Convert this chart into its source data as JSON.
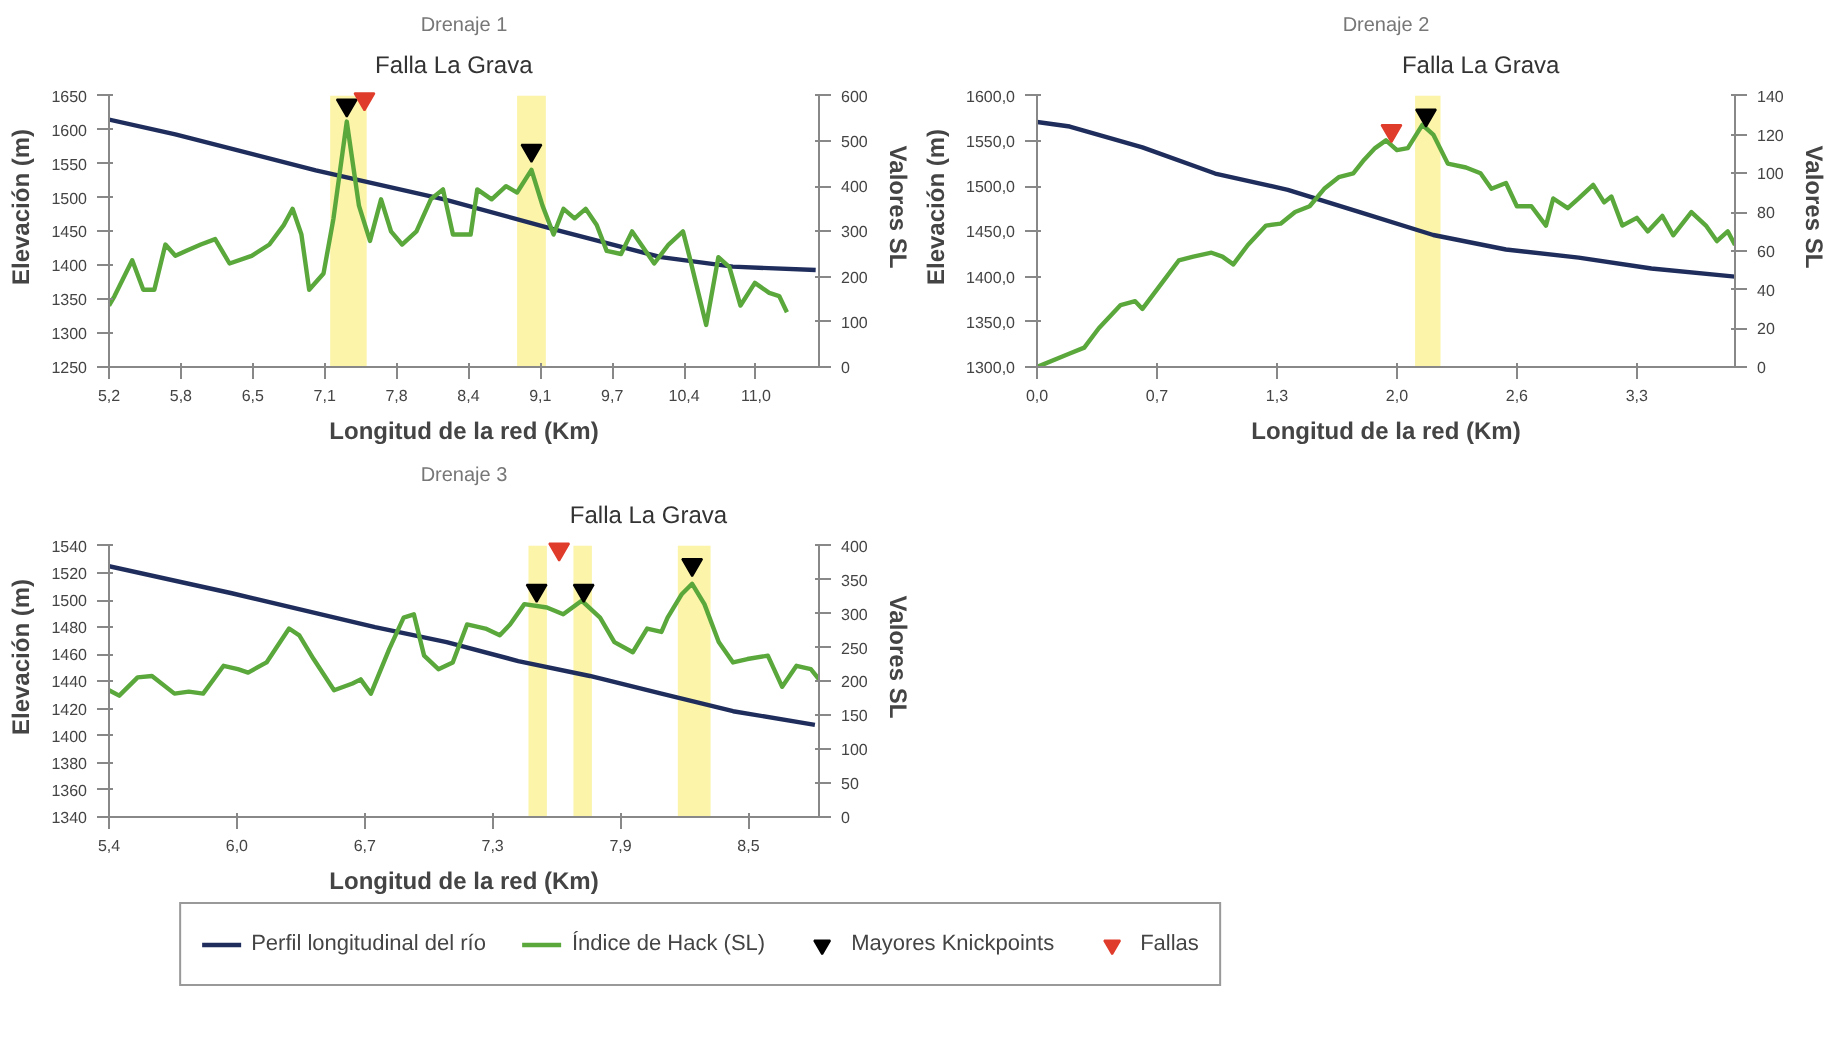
{
  "chart_data": [
    {
      "type": "line",
      "title": "Drenaje 1",
      "xlabel": "Longitud de la red (Km)",
      "ylabel": "Elevación (m)",
      "y2label": "Valores SL",
      "xlim": [
        5.2,
        11.62
      ],
      "xticks": [
        {
          "value": 5.2,
          "label": "5,2"
        },
        {
          "value": 5.85,
          "label": "5,8"
        },
        {
          "value": 6.5,
          "label": "6,5"
        },
        {
          "value": 7.15,
          "label": "7,1"
        },
        {
          "value": 7.8,
          "label": "7,8"
        },
        {
          "value": 8.45,
          "label": "8,4"
        },
        {
          "value": 9.1,
          "label": "9,1"
        },
        {
          "value": 9.75,
          "label": "9,7"
        },
        {
          "value": 10.4,
          "label": "10,4"
        },
        {
          "value": 11.05,
          "label": "11,0"
        }
      ],
      "ylim": [
        1250,
        1650
      ],
      "yticks": [
        1250,
        1300,
        1350,
        1400,
        1450,
        1500,
        1550,
        1600,
        1650
      ],
      "y2lim": [
        0,
        600
      ],
      "y2ticks": [
        0,
        100,
        200,
        300,
        400,
        500,
        600
      ],
      "grid": false,
      "bands": [
        {
          "axis": "x",
          "from": 7.2,
          "to": 7.53,
          "color": "#fbf3a0"
        },
        {
          "axis": "x",
          "from": 8.89,
          "to": 9.15,
          "color": "#fbf3a0"
        }
      ],
      "annotations": [
        "Falla La Grava"
      ],
      "series": [
        {
          "color": "#1f2d5c",
          "x": [
            5.2,
            5.8,
            7.07,
            8.24,
            9.25,
            10.19,
            10.84,
            11.59
          ],
          "values": [
            1615,
            1593,
            1540,
            1497,
            1452,
            1412,
            1398,
            1393
          ]
        },
        {
          "color": "#5aa83c",
          "axis": "y2",
          "x": [
            5.2,
            5.25,
            5.41,
            5.51,
            5.61,
            5.71,
            5.8,
            5.9,
            6.03,
            6.16,
            6.29,
            6.49,
            6.65,
            6.78,
            6.86,
            6.94,
            7.01,
            7.14,
            7.23,
            7.35,
            7.46,
            7.56,
            7.66,
            7.75,
            7.85,
            7.98,
            8.11,
            8.22,
            8.31,
            8.47,
            8.53,
            8.66,
            8.79,
            8.89,
            9.02,
            9.12,
            9.22,
            9.31,
            9.41,
            9.51,
            9.61,
            9.7,
            9.83,
            9.93,
            10.13,
            10.26,
            10.39,
            10.45,
            10.6,
            10.71,
            10.81,
            10.91,
            11.04,
            11.17,
            11.26,
            11.33
          ],
          "values": [
            136,
            157,
            236,
            171,
            171,
            271,
            246,
            257,
            271,
            283,
            229,
            246,
            271,
            314,
            350,
            293,
            171,
            207,
            329,
            543,
            357,
            279,
            371,
            300,
            271,
            300,
            371,
            393,
            293,
            293,
            393,
            371,
            400,
            386,
            436,
            357,
            293,
            350,
            329,
            350,
            314,
            257,
            250,
            300,
            229,
            271,
            300,
            243,
            93,
            243,
            221,
            136,
            186,
            164,
            157,
            121
          ]
        },
        {
          "type": "scatter",
          "marker": "triangle",
          "color": "#000000",
          "axis": "y2",
          "x": [
            7.35,
            9.02
          ],
          "values": [
            579,
            479
          ]
        },
        {
          "type": "scatter",
          "marker": "triangle",
          "color": "#e03c2c",
          "axis": "y2",
          "x": [
            7.51
          ],
          "values": [
            593
          ]
        }
      ]
    },
    {
      "type": "line",
      "title": "Drenaje 2",
      "xlabel": "Longitud de la red (Km)",
      "ylabel": "Elevación (m)",
      "y2label": "Valores SL",
      "xlim": [
        0,
        3.84
      ],
      "xticks": [
        {
          "value": 0,
          "label": "0,0"
        },
        {
          "value": 0.66,
          "label": "0,7"
        },
        {
          "value": 1.32,
          "label": "1,3"
        },
        {
          "value": 1.98,
          "label": "2,0"
        },
        {
          "value": 2.64,
          "label": "2,6"
        },
        {
          "value": 3.3,
          "label": "3,3"
        }
      ],
      "ylim": [
        1300,
        1600
      ],
      "yticks": [
        {
          "value": 1300,
          "label": "1300,0"
        },
        {
          "value": 1350,
          "label": "1350,0"
        },
        {
          "value": 1400,
          "label": "1400,0"
        },
        {
          "value": 1450,
          "label": "1450,0"
        },
        {
          "value": 1500,
          "label": "1500,0"
        },
        {
          "value": 1550,
          "label": "1550,0"
        },
        {
          "value": 1600,
          "label": "1600,0"
        }
      ],
      "y2lim": [
        0,
        140
      ],
      "y2ticks": [
        0,
        20,
        40,
        60,
        80,
        100,
        120,
        140
      ],
      "grid": false,
      "bands": [
        {
          "axis": "x",
          "from": 2.08,
          "to": 2.22,
          "color": "#fbf3a0"
        }
      ],
      "annotations": [
        "Falla La Grava"
      ],
      "series": [
        {
          "color": "#1f2d5c",
          "x": [
            0,
            0.18,
            0.58,
            0.98,
            1.38,
            1.78,
            2.18,
            2.58,
            2.98,
            3.38,
            3.84
          ],
          "values": [
            1571,
            1566,
            1543,
            1514,
            1496,
            1471,
            1446,
            1430,
            1421,
            1409,
            1400
          ]
        },
        {
          "color": "#5aa83c",
          "axis": "y2",
          "x": [
            0,
            0.18,
            0.26,
            0.34,
            0.46,
            0.54,
            0.58,
            0.7,
            0.78,
            0.86,
            0.96,
            1.02,
            1.08,
            1.16,
            1.26,
            1.34,
            1.42,
            1.5,
            1.58,
            1.66,
            1.74,
            1.8,
            1.86,
            1.92,
            1.98,
            2.04,
            2.12,
            2.18,
            2.26,
            2.36,
            2.44,
            2.5,
            2.58,
            2.64,
            2.72,
            2.8,
            2.84,
            2.92,
            2.98,
            3.06,
            3.12,
            3.16,
            3.22,
            3.3,
            3.36,
            3.44,
            3.5,
            3.6,
            3.68,
            3.74,
            3.8,
            3.84
          ],
          "values": [
            0,
            7,
            10,
            20,
            32,
            34,
            30,
            45,
            55,
            57,
            59,
            57,
            53,
            63,
            73,
            74,
            80,
            83,
            92,
            98,
            100,
            107,
            113,
            117,
            112,
            113,
            125,
            120,
            105,
            103,
            100,
            92,
            95,
            83,
            83,
            73,
            87,
            82,
            87,
            94,
            85,
            88,
            73,
            77,
            70,
            78,
            68,
            80,
            73,
            65,
            70,
            63
          ]
        },
        {
          "type": "scatter",
          "marker": "triangle",
          "color": "#000000",
          "axis": "y2",
          "x": [
            2.14
          ],
          "values": [
            130
          ]
        },
        {
          "type": "scatter",
          "marker": "triangle",
          "color": "#e03c2c",
          "axis": "y2",
          "x": [
            1.95
          ],
          "values": [
            122
          ]
        }
      ]
    },
    {
      "type": "line",
      "title": "Drenaje 3",
      "xlabel": "Longitud de la red (Km)",
      "ylabel": "Elevación (m)",
      "y2label": "Valores SL",
      "xlim": [
        5.4,
        8.87
      ],
      "xticks": [
        {
          "value": 5.4,
          "label": "5,4"
        },
        {
          "value": 6.025,
          "label": "6,0"
        },
        {
          "value": 6.65,
          "label": "6,7"
        },
        {
          "value": 7.275,
          "label": "7,3"
        },
        {
          "value": 7.9,
          "label": "7,9"
        },
        {
          "value": 8.525,
          "label": "8,5"
        }
      ],
      "ylim": [
        1340,
        1540
      ],
      "yticks": [
        1340,
        1360,
        1380,
        1400,
        1420,
        1440,
        1460,
        1480,
        1500,
        1520,
        1540
      ],
      "y2lim": [
        0,
        400
      ],
      "y2ticks": [
        0,
        50,
        100,
        150,
        200,
        250,
        300,
        350,
        400
      ],
      "grid": false,
      "legend": "bottom",
      "bands": [
        {
          "axis": "x",
          "from": 7.45,
          "to": 7.54,
          "color": "#fbf3a0"
        },
        {
          "axis": "x",
          "from": 7.67,
          "to": 7.76,
          "color": "#fbf3a0"
        },
        {
          "axis": "x",
          "from": 8.18,
          "to": 8.34,
          "color": "#fbf3a0"
        }
      ],
      "annotations": [
        "Falla La Grava"
      ],
      "series": [
        {
          "name": "Perfil longitudinal del río",
          "color": "#1f2d5c",
          "x": [
            5.4,
            6.0,
            6.7,
            7.05,
            7.4,
            7.75,
            8.1,
            8.45,
            8.85
          ],
          "values": [
            1525,
            1505,
            1480,
            1469,
            1455,
            1444,
            1431,
            1418,
            1408
          ]
        },
        {
          "name": "Índice de Hack (SL)",
          "color": "#5aa83c",
          "axis": "y2",
          "x": [
            5.4,
            5.45,
            5.54,
            5.61,
            5.72,
            5.79,
            5.86,
            5.96,
            6.03,
            6.08,
            6.17,
            6.28,
            6.33,
            6.4,
            6.5,
            6.59,
            6.63,
            6.68,
            6.77,
            6.84,
            6.89,
            6.94,
            7.01,
            7.08,
            7.15,
            7.24,
            7.31,
            7.36,
            7.43,
            7.54,
            7.62,
            7.71,
            7.8,
            7.87,
            7.96,
            8.03,
            8.1,
            8.13,
            8.2,
            8.25,
            8.31,
            8.38,
            8.45,
            8.52,
            8.62,
            8.69,
            8.76,
            8.83,
            8.87
          ],
          "values": [
            187,
            179,
            206,
            208,
            182,
            185,
            182,
            223,
            218,
            213,
            228,
            278,
            268,
            233,
            187,
            197,
            203,
            182,
            248,
            294,
            299,
            238,
            218,
            228,
            284,
            278,
            268,
            284,
            314,
            309,
            299,
            319,
            294,
            258,
            243,
            278,
            273,
            294,
            329,
            344,
            314,
            258,
            228,
            233,
            238,
            192,
            223,
            218,
            203
          ]
        },
        {
          "name": "Mayores Knickpoints",
          "type": "scatter",
          "marker": "triangle",
          "color": "#000000",
          "axis": "y2",
          "x": [
            7.49,
            7.72,
            8.25
          ],
          "values": [
            334,
            334,
            372
          ]
        },
        {
          "name": "Fallas",
          "type": "scatter",
          "marker": "triangle",
          "color": "#e03c2c",
          "axis": "y2",
          "x": [
            7.6
          ],
          "values": [
            395
          ]
        }
      ]
    }
  ]
}
